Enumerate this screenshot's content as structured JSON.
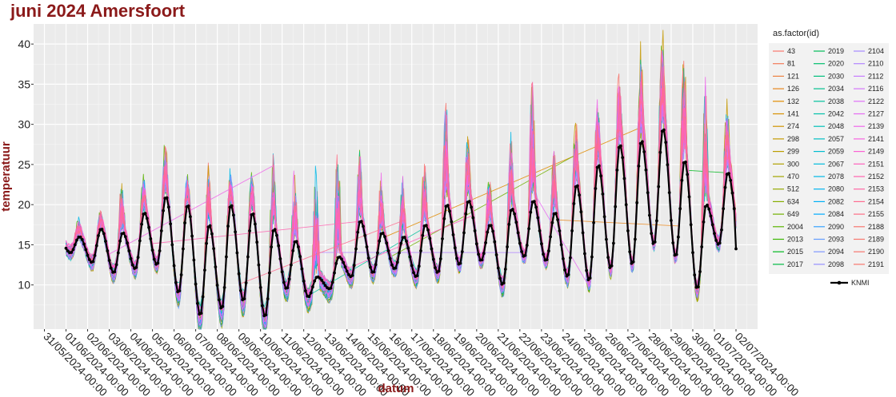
{
  "chart_data": {
    "type": "line",
    "title": "juni 2024 Amersfoort",
    "xlabel": "datum",
    "ylabel": "temperatuur",
    "ylim": [
      4.5,
      42.5
    ],
    "xlim": [
      "2024-05-30 12:00",
      "2024-07-03 00:00"
    ],
    "y_ticks": [
      10,
      15,
      20,
      25,
      30,
      35,
      40
    ],
    "x_ticks": [
      "31/05/2024-00:00",
      "01/06/2024-00:00",
      "02/06/2024-00:00",
      "03/06/2024-00:00",
      "04/06/2024-00:00",
      "05/06/2024-00:00",
      "06/06/2024-00:00",
      "07/06/2024-00:00",
      "08/06/2024-00:00",
      "09/06/2024-00:00",
      "10/06/2024-00:00",
      "11/06/2024-00:00",
      "12/06/2024-00:00",
      "13/06/2024-00:00",
      "14/06/2024-00:00",
      "15/06/2024-00:00",
      "16/06/2024-00:00",
      "17/06/2024-00:00",
      "18/06/2024-00:00",
      "19/06/2024-00:00",
      "20/06/2024-00:00",
      "21/06/2024-00:00",
      "22/06/2024-00:00",
      "23/06/2024-00:00",
      "24/06/2024-00:00",
      "25/06/2024-00:00",
      "26/06/2024-00:00",
      "27/06/2024-00:00",
      "28/06/2024-00:00",
      "29/06/2024-00:00",
      "30/06/2024-00:00",
      "01/07/2024-00:00",
      "02/07/2024-00:00"
    ],
    "grid": true,
    "legend": {
      "title": "as.factor(id)",
      "placement": "right",
      "columns": [
        [
          "43",
          "81",
          "121",
          "126",
          "132",
          "141",
          "274",
          "298",
          "299",
          "300",
          "470",
          "512",
          "634",
          "649",
          "2004",
          "2013",
          "2015",
          "2017"
        ],
        [
          "2019",
          "2020",
          "2030",
          "2034",
          "2038",
          "2042",
          "2048",
          "2057",
          "2059",
          "2067",
          "2078",
          "2080",
          "2082",
          "2084",
          "2090",
          "2093",
          "2094",
          "2098"
        ],
        [
          "2104",
          "2110",
          "2112",
          "2116",
          "2122",
          "2127",
          "2139",
          "2141",
          "2149",
          "2151",
          "2152",
          "2153",
          "2154",
          "2155",
          "2188",
          "2189",
          "2190",
          "2191"
        ]
      ],
      "knmi_label": "KNMI"
    },
    "knmi_series": {
      "name": "KNMI",
      "color": "#000000",
      "daily_min": [
        14.0,
        12.8,
        11.5,
        12.0,
        12.5,
        9.0,
        6.2,
        7.0,
        8.0,
        6.0,
        9.5,
        8.5,
        9.5,
        11.0,
        11.5,
        12.0,
        11.0,
        11.5,
        12.5,
        13.0,
        10.0,
        13.5,
        13.0,
        11.0,
        10.5,
        12.0,
        12.5,
        15.0,
        13.5,
        9.5,
        15.0
      ],
      "daily_max": [
        16.0,
        17.0,
        16.5,
        19.0,
        21.0,
        20.0,
        17.5,
        20.0,
        19.0,
        17.0,
        15.5,
        11.0,
        13.5,
        18.0,
        16.5,
        16.0,
        17.5,
        20.0,
        20.5,
        17.5,
        19.5,
        20.5,
        19.0,
        22.5,
        25.0,
        27.5,
        28.0,
        29.5,
        25.5,
        20.0,
        24.0
      ],
      "end_value": 14.5
    },
    "station_series": {
      "note_free": true,
      "peak_max": [
        18.0,
        19.0,
        23.0,
        24.0,
        28.5,
        24.0,
        25.5,
        24.5,
        25.0,
        26.5,
        24.5,
        25.5,
        28.0,
        27.0,
        24.0,
        24.0,
        26.0,
        34.5,
        28.5,
        24.0,
        29.5,
        36.0,
        27.0,
        31.0,
        33.5,
        37.5,
        38.5,
        42.0,
        39.0,
        36.0,
        33.0
      ],
      "colors": [
        "#f8766d",
        "#f37b59",
        "#ed8141",
        "#e7861b",
        "#e08b00",
        "#d89000",
        "#cf9400",
        "#c59900",
        "#bb9d00",
        "#b0a100",
        "#a3a500",
        "#95a900",
        "#85ad00",
        "#72b000",
        "#5bb300",
        "#39b600",
        "#00b81f",
        "#00ba42",
        "#00bc59",
        "#00be6c",
        "#00bf7d",
        "#00c08d",
        "#00c19c",
        "#00c1aa",
        "#00c0b8",
        "#00bfc4",
        "#00bdd0",
        "#00bbdc",
        "#00b8e7",
        "#00b4f0",
        "#00b0f6",
        "#00abfd",
        "#35a2ff",
        "#619cff",
        "#7f96ff",
        "#9590ff",
        "#a58aff",
        "#b385ff",
        "#c77cff",
        "#d474fb",
        "#df70f8",
        "#e76bf3",
        "#f066ea",
        "#f763e0",
        "#fc61d4",
        "#ff62bc",
        "#ff64b0",
        "#ff67a4",
        "#ff6c91",
        "#fd6f86",
        "#f8766d"
      ]
    }
  }
}
